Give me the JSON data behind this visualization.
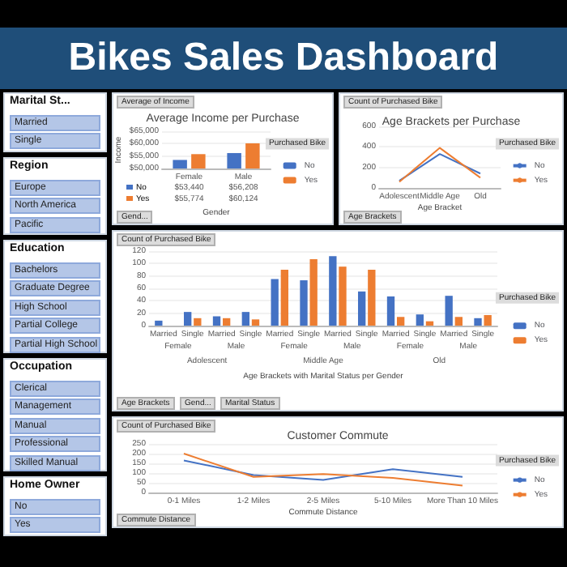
{
  "chart_data": [
    {
      "type": "other",
      "title": "Bikes Sales Dashboard"
    },
    {
      "type": "other",
      "title": "Marital St...",
      "annotations": [
        "Married",
        "Single"
      ]
    },
    {
      "type": "other",
      "title": "Region",
      "annotations": [
        "Europe",
        "North America",
        "Pacific"
      ]
    },
    {
      "type": "other",
      "title": "Education",
      "annotations": [
        "Bachelors",
        "Graduate Degree",
        "High School",
        "Partial College",
        "Partial High School"
      ]
    },
    {
      "type": "other",
      "title": "Occupation",
      "annotations": [
        "Clerical",
        "Management",
        "Manual",
        "Professional",
        "Skilled Manual"
      ]
    },
    {
      "type": "other",
      "title": "Home Owner",
      "annotations": [
        "No",
        "Yes"
      ]
    },
    {
      "type": "bar",
      "title": "Average Income per Purchase",
      "xlabel": "Gender",
      "ylabel": "Income",
      "legend_title": "Purchased Bike",
      "legend": "right",
      "grid": "y",
      "categories": [
        "Female",
        "Male"
      ],
      "ylim": [
        50000,
        65000
      ],
      "yticks": [
        {
          "value": 50000,
          "label": "$50,000"
        },
        {
          "value": 55000,
          "label": "$55,000"
        },
        {
          "value": 60000,
          "label": "$60,000"
        },
        {
          "value": 65000,
          "label": "$65,000"
        }
      ],
      "annotations": [
        "Average of Income",
        "Gend..."
      ],
      "series": [
        {
          "name": "No",
          "color": "#4472c4",
          "values": [
            53440,
            56208
          ],
          "value_labels": [
            "$53,440",
            "$56,208"
          ]
        },
        {
          "name": "Yes",
          "color": "#ed7d31",
          "values": [
            55774,
            60124
          ],
          "value_labels": [
            "$55,774",
            "$60,124"
          ]
        }
      ]
    },
    {
      "type": "line",
      "title": "Age Brackets per Purchase",
      "xlabel": "Age Bracket",
      "legend_title": "Purchased Bike",
      "legend": "right",
      "grid": "y",
      "categories": [
        "Adolescent",
        "Middle Age",
        "Old"
      ],
      "ylim": [
        0,
        600
      ],
      "yticks": [
        0,
        200,
        400,
        600
      ],
      "annotations": [
        "Count of Purchased Bike",
        "Age Brackets"
      ],
      "series": [
        {
          "name": "No",
          "color": "#4472c4",
          "values": [
            70,
            330,
            140
          ]
        },
        {
          "name": "Yes",
          "color": "#ed7d31",
          "values": [
            60,
            390,
            100
          ]
        }
      ]
    },
    {
      "type": "bar",
      "xlabel": "Age Brackets with Marital Status per Gender",
      "legend_title": "Purchased Bike",
      "legend": "right",
      "grid": "y",
      "categories": [
        "Married",
        "Single",
        "Married",
        "Single",
        "Married",
        "Single",
        "Married",
        "Single",
        "Married",
        "Single",
        "Married",
        "Single"
      ],
      "ylim": [
        0,
        120
      ],
      "yticks": [
        0,
        20,
        40,
        60,
        80,
        100,
        120
      ],
      "annotations": [
        "Count of Purchased Bike",
        "Female",
        "Male",
        "Female",
        "Male",
        "Female",
        "Male",
        "Adolescent",
        "Middle Age",
        "Old",
        "Age Brackets",
        "Gend...",
        "Marital Status"
      ],
      "series": [
        {
          "name": "No",
          "color": "#4472c4",
          "values": [
            8,
            22,
            15,
            22,
            75,
            73,
            112,
            55,
            47,
            18,
            48,
            12
          ]
        },
        {
          "name": "Yes",
          "color": "#ed7d31",
          "values": [
            null,
            12,
            12,
            10,
            90,
            107,
            95,
            90,
            14,
            7,
            14,
            17
          ]
        }
      ]
    },
    {
      "type": "line",
      "title": "Customer Commute",
      "xlabel": "Commute Distance",
      "legend_title": "Purchased Bike",
      "legend": "right",
      "grid": "y",
      "categories": [
        "0-1 Miles",
        "1-2 Miles",
        "2-5 Miles",
        "5-10 Miles",
        "More Than 10 Miles"
      ],
      "ylim": [
        0,
        250
      ],
      "yticks": [
        0,
        50,
        100,
        150,
        200,
        250
      ],
      "annotations": [
        "Count of Purchased Bike",
        "Commute Distance"
      ],
      "series": [
        {
          "name": "No",
          "color": "#4472c4",
          "values": [
            165,
            90,
            65,
            120,
            80
          ]
        },
        {
          "name": "Yes",
          "color": "#ed7d31",
          "values": [
            200,
            80,
            95,
            75,
            35
          ]
        }
      ]
    }
  ]
}
